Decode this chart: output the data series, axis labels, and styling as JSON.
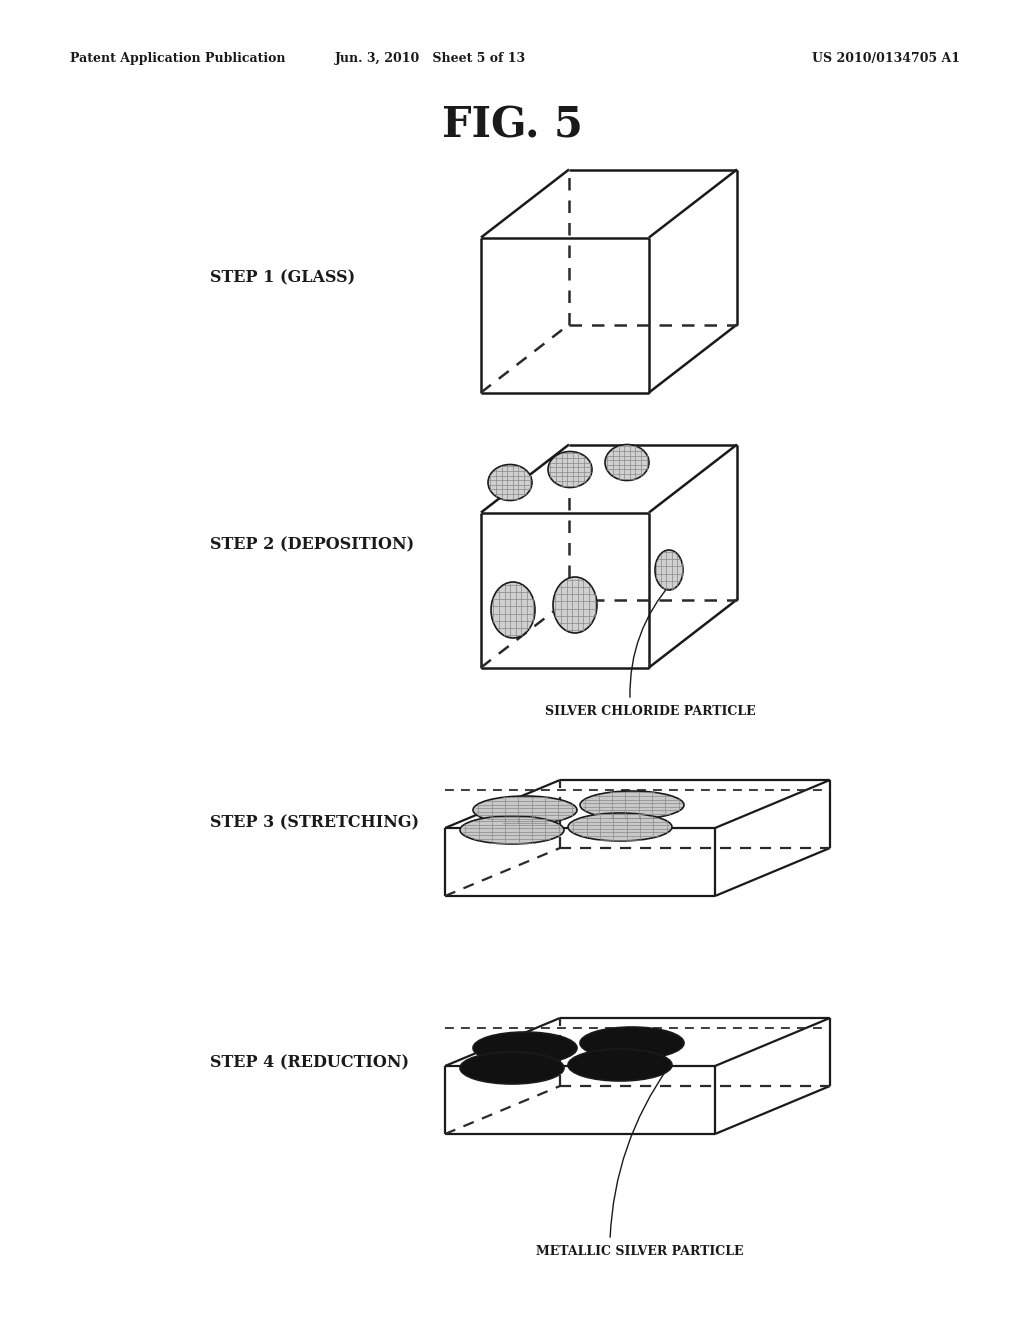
{
  "header_left": "Patent Application Publication",
  "header_center": "Jun. 3, 2010   Sheet 5 of 13",
  "header_right": "US 2010/0134705 A1",
  "figure_title": "FIG. 5",
  "step_labels": [
    "STEP 1 (GLASS)",
    "STEP 2 (DEPOSITION)",
    "STEP 3 (STRETCHING)",
    "STEP 4 (REDUCTION)"
  ],
  "ann2_text": "SILVER CHLORIDE PARTICLE",
  "ann4_text": "METALLIC SILVER PARTICLE",
  "bg_color": "#ffffff",
  "line_color": "#1a1a1a",
  "dashed_color": "#2a2a2a"
}
